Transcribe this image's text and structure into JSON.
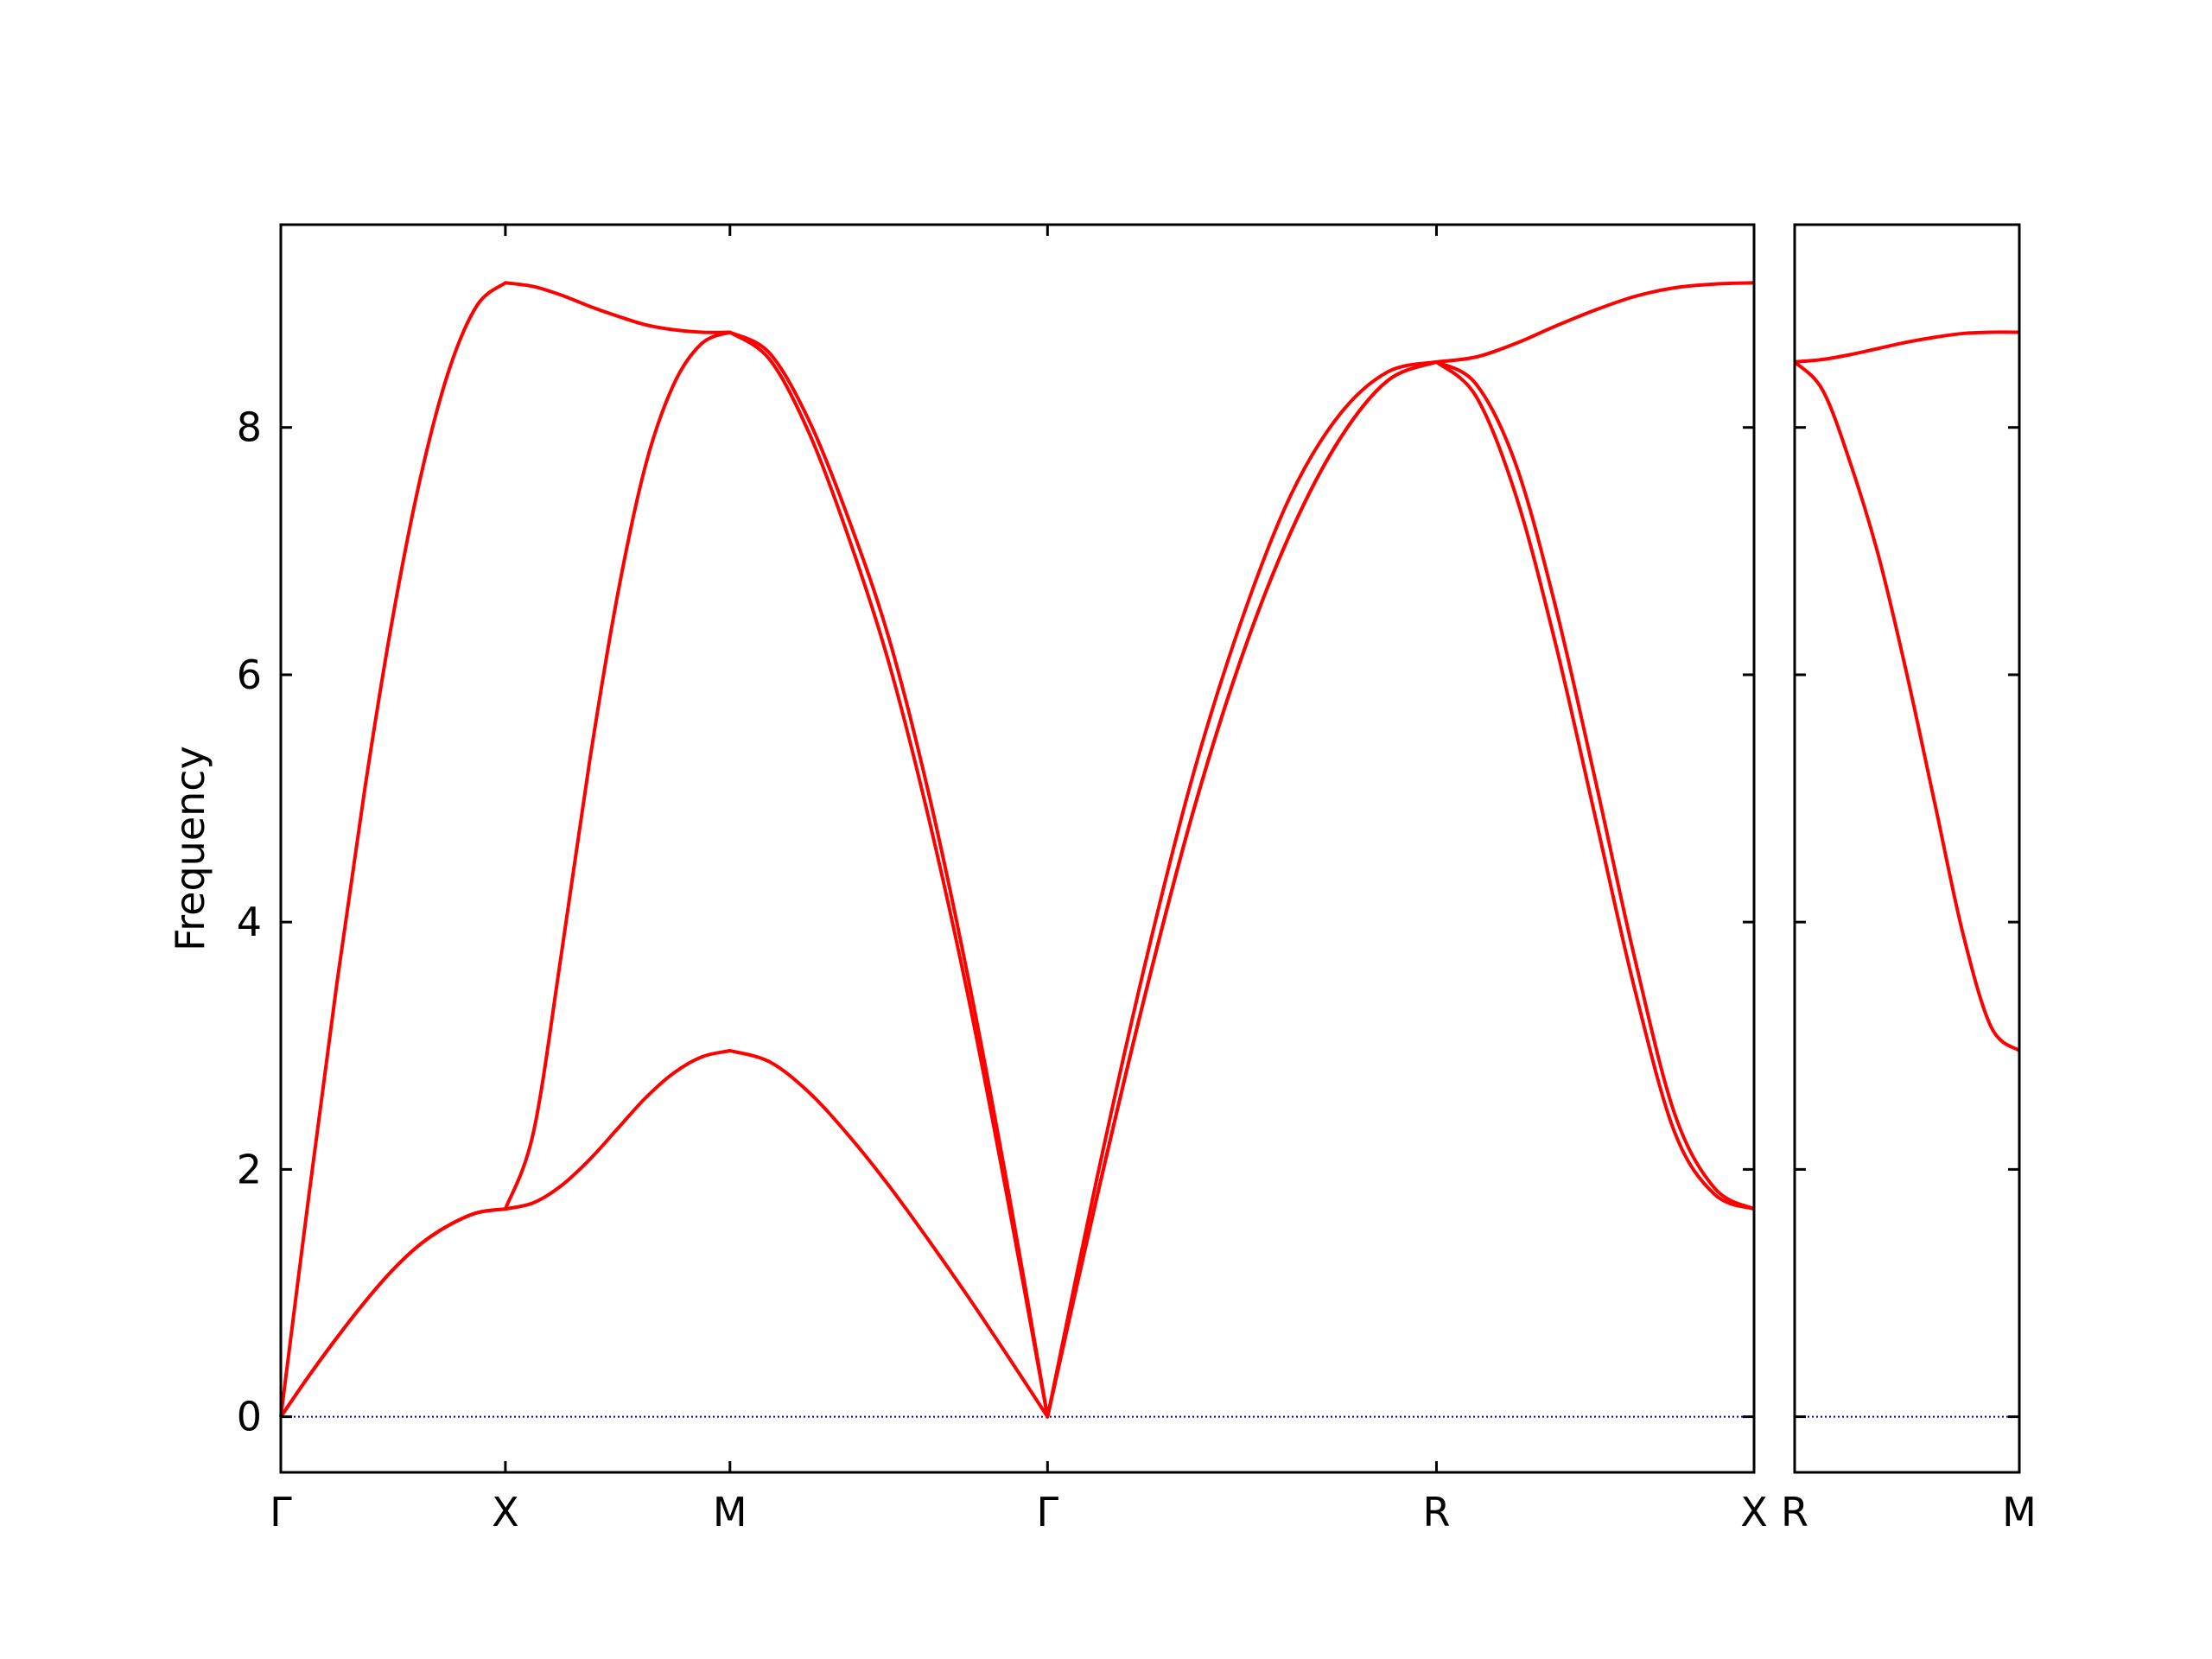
{
  "chart_data": [
    {
      "type": "line",
      "ylabel": "Frequency",
      "x": [
        0,
        0.0625,
        0.125,
        0.1875,
        0.25,
        0.3125,
        0.375,
        0.4375,
        0.5,
        0.5625,
        0.625,
        0.6875,
        0.75,
        0.8125,
        0.875,
        0.9375,
        1.0,
        1.0884,
        1.1768,
        1.2652,
        1.3536,
        1.4419,
        1.5303,
        1.6187,
        1.7071,
        1.8154,
        1.9236,
        2.0319,
        2.1401,
        2.2484,
        2.3566,
        2.4649,
        2.5731,
        2.6615,
        2.7499,
        2.8383,
        2.9267,
        3.015,
        3.1034,
        3.1918,
        3.2802
      ],
      "series": [
        {
          "color": "#ff0000",
          "values": [
            0,
            0.33,
            0.64,
            0.93,
            1.19,
            1.4,
            1.55,
            1.65,
            1.68,
            1.73,
            1.87,
            2.08,
            2.33,
            2.58,
            2.78,
            2.91,
            2.96,
            2.87,
            2.62,
            2.27,
            1.87,
            1.43,
            0.97,
            0.49,
            0,
            1.75,
            3.4,
            4.9,
            6.15,
            7.15,
            7.9,
            8.38,
            8.53,
            8.25,
            7.45,
            6.25,
            4.85,
            3.45,
            2.3,
            1.8,
            1.68
          ]
        },
        {
          "color": "#ff0000",
          "values": [
            0,
            0.33,
            0.64,
            0.93,
            1.19,
            1.4,
            1.55,
            1.65,
            1.68,
            2.3,
            3.75,
            5.3,
            6.65,
            7.7,
            8.35,
            8.68,
            8.77,
            8.55,
            7.95,
            7.1,
            6.1,
            4.85,
            3.4,
            1.75,
            0,
            1.75,
            3.4,
            4.9,
            6.15,
            7.15,
            7.9,
            8.38,
            8.53,
            8.35,
            7.7,
            6.55,
            5.15,
            3.7,
            2.45,
            1.85,
            1.68
          ]
        },
        {
          "color": "#ff0000",
          "values": [
            0,
            1.79,
            3.51,
            5.09,
            6.48,
            7.62,
            8.47,
            8.99,
            9.17,
            9.14,
            9.07,
            8.98,
            8.9,
            8.83,
            8.79,
            8.77,
            8.77,
            8.6,
            8.05,
            7.25,
            6.3,
            5.05,
            3.55,
            1.85,
            0,
            1.9,
            3.65,
            5.2,
            6.45,
            7.45,
            8.1,
            8.45,
            8.53,
            8.57,
            8.68,
            8.82,
            8.95,
            9.06,
            9.13,
            9.16,
            9.17
          ]
        }
      ],
      "xlim": [
        0,
        3.2802
      ],
      "xticks": [
        {
          "value": 0,
          "label": "Γ"
        },
        {
          "value": 0.5,
          "label": "X"
        },
        {
          "value": 1.0,
          "label": "M"
        },
        {
          "value": 1.7071,
          "label": "Γ"
        },
        {
          "value": 2.5731,
          "label": "R"
        },
        {
          "value": 3.2802,
          "label": "X"
        }
      ],
      "ylim": [
        -0.45,
        9.64
      ],
      "yticks": [
        0,
        2,
        4,
        6,
        8
      ],
      "show_ytick_labels": true,
      "hline": 0,
      "hline_color": "#0000cc"
    },
    {
      "type": "line",
      "x": [
        0,
        0.0625,
        0.125,
        0.1875,
        0.25,
        0.3125,
        0.375,
        0.4375,
        0.5
      ],
      "series": [
        {
          "color": "#ff0000",
          "values": [
            8.53,
            8.3,
            7.7,
            6.95,
            6.0,
            4.95,
            3.9,
            3.15,
            2.96
          ]
        },
        {
          "color": "#ff0000",
          "values": [
            8.53,
            8.55,
            8.59,
            8.64,
            8.69,
            8.73,
            8.76,
            8.77,
            8.77
          ]
        }
      ],
      "xlim": [
        0,
        0.5
      ],
      "xticks": [
        {
          "value": 0,
          "label": "R"
        },
        {
          "value": 0.5,
          "label": "M"
        }
      ],
      "ylim": [
        -0.45,
        9.64
      ],
      "yticks": [
        0,
        2,
        4,
        6,
        8
      ],
      "show_ytick_labels": false,
      "hline": 0,
      "hline_color": "#0000cc"
    }
  ]
}
